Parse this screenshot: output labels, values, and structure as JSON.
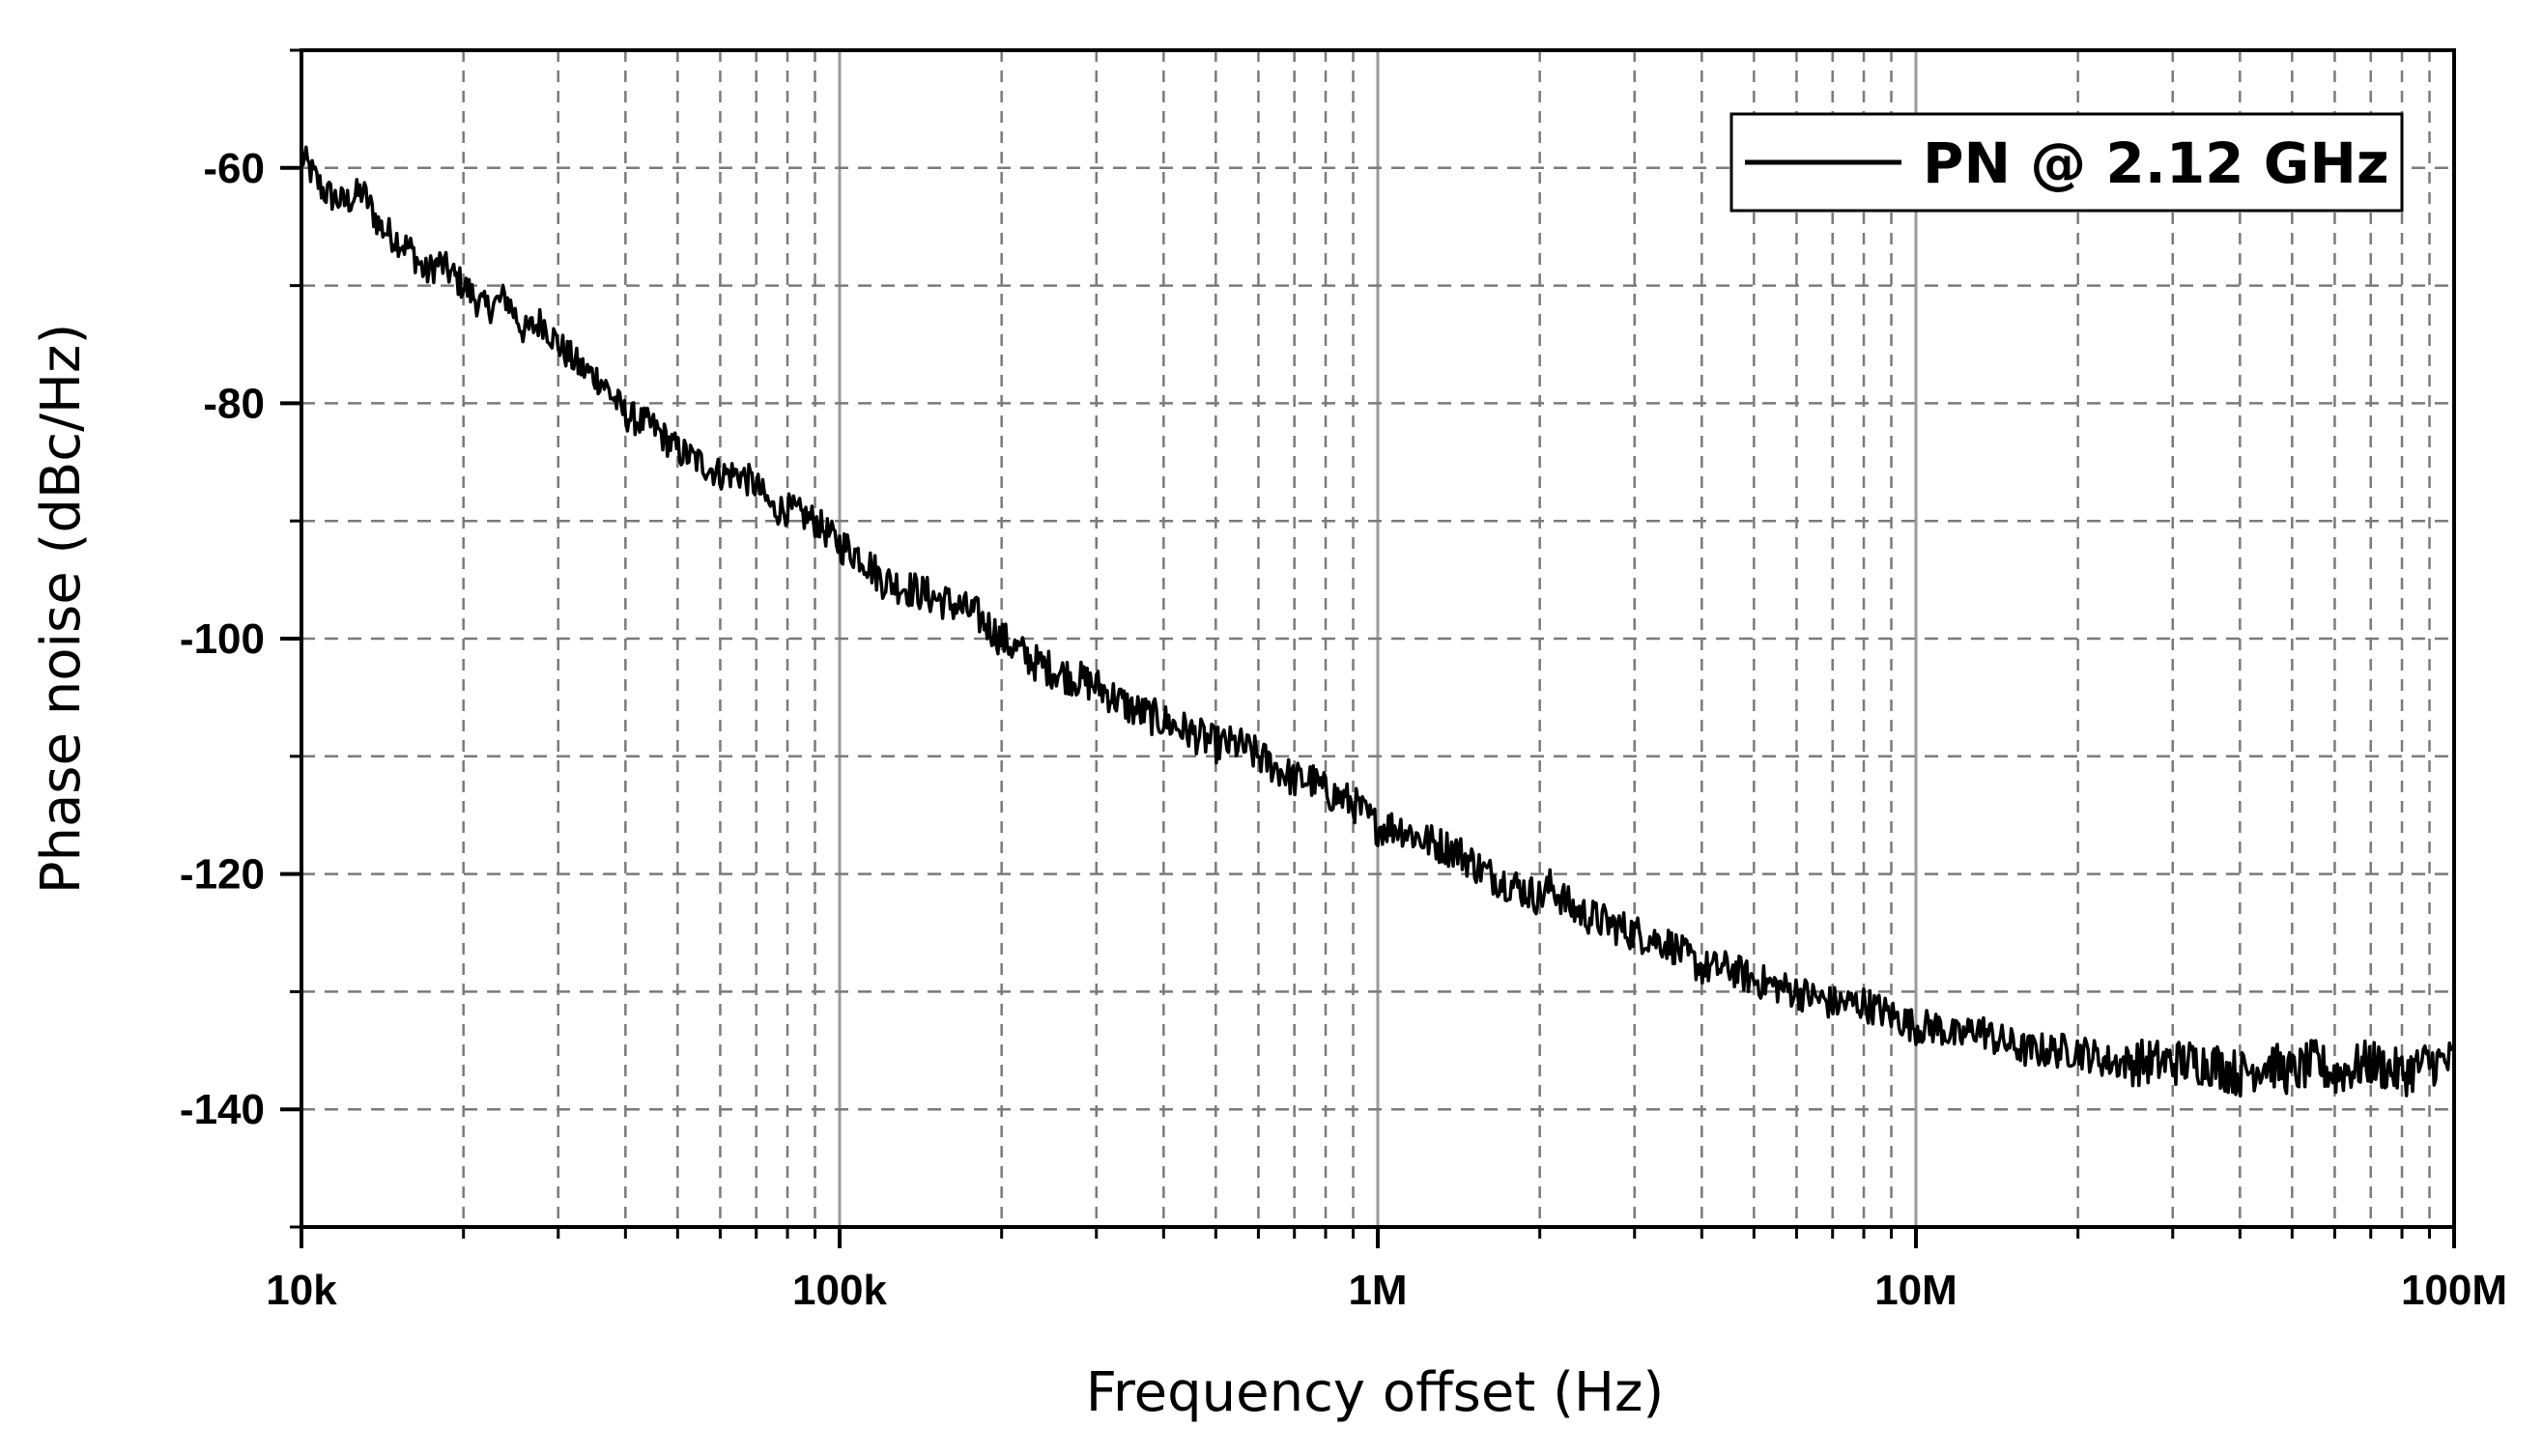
{
  "chart_data": {
    "type": "line",
    "title": "",
    "xlabel": "Frequency offset (Hz)",
    "ylabel": "Phase noise (dBc/Hz)",
    "x_scale": "log",
    "xlim": [
      10000,
      100000000
    ],
    "ylim": [
      -150,
      -50
    ],
    "x_ticks": [
      {
        "value": 10000,
        "label": "10k"
      },
      {
        "value": 100000,
        "label": "100k"
      },
      {
        "value": 1000000,
        "label": "1M"
      },
      {
        "value": 10000000,
        "label": "10M"
      },
      {
        "value": 100000000,
        "label": "100M"
      }
    ],
    "y_ticks": [
      {
        "value": -60,
        "label": "-60"
      },
      {
        "value": -80,
        "label": "-80"
      },
      {
        "value": -100,
        "label": "-100"
      },
      {
        "value": -120,
        "label": "-120"
      },
      {
        "value": -140,
        "label": "-140"
      }
    ],
    "grid": true,
    "legend_position": "top-right",
    "series": [
      {
        "name": "PN @ 2.12 GHz",
        "color": "#000000",
        "x": [
          10000,
          11000,
          12000,
          13000,
          14000,
          15000,
          16000,
          17000,
          18000,
          20000,
          22000,
          24000,
          26000,
          28000,
          30000,
          33000,
          36000,
          40000,
          45000,
          50000,
          55000,
          60000,
          65000,
          70000,
          75000,
          80000,
          90000,
          100000,
          110000,
          120000,
          140000,
          160000,
          180000,
          200000,
          230000,
          260000,
          300000,
          350000,
          400000,
          450000,
          500000,
          550000,
          600000,
          650000,
          700000,
          750000,
          800000,
          900000,
          1000000,
          1100000,
          1200000,
          1400000,
          1600000,
          1800000,
          2000000,
          2100000,
          2300000,
          2600000,
          3000000,
          3500000,
          4000000,
          4500000,
          5000000,
          6000000,
          7000000,
          8000000,
          9000000,
          10000000,
          11000000,
          12000000,
          13000000,
          14000000,
          16000000,
          18000000,
          20000000,
          23000000,
          26000000,
          30000000,
          35000000,
          40000000,
          45000000,
          50000000,
          55000000,
          60000000,
          70000000,
          80000000,
          90000000,
          100000000
        ],
        "y": [
          -59,
          -62,
          -63,
          -62,
          -65,
          -66,
          -67,
          -69,
          -68,
          -70,
          -72,
          -71,
          -74,
          -73,
          -75,
          -77,
          -78,
          -81,
          -82,
          -84,
          -85,
          -86,
          -86,
          -87,
          -89,
          -89,
          -90,
          -92,
          -93,
          -95,
          -96,
          -97,
          -98,
          -100,
          -102,
          -103,
          -104,
          -106,
          -107,
          -108,
          -109,
          -109,
          -110,
          -111,
          -112,
          -112,
          -113,
          -114,
          -116,
          -116,
          -117,
          -118,
          -120,
          -121,
          -122,
          -121,
          -123,
          -124,
          -125,
          -126,
          -128,
          -128,
          -129,
          -130,
          -131,
          -131,
          -132,
          -133,
          -133,
          -134,
          -133,
          -134,
          -135,
          -135,
          -135,
          -136,
          -136,
          -136,
          -136,
          -137,
          -136,
          -137,
          -136,
          -137,
          -136,
          -137,
          -136,
          -136
        ]
      }
    ]
  }
}
